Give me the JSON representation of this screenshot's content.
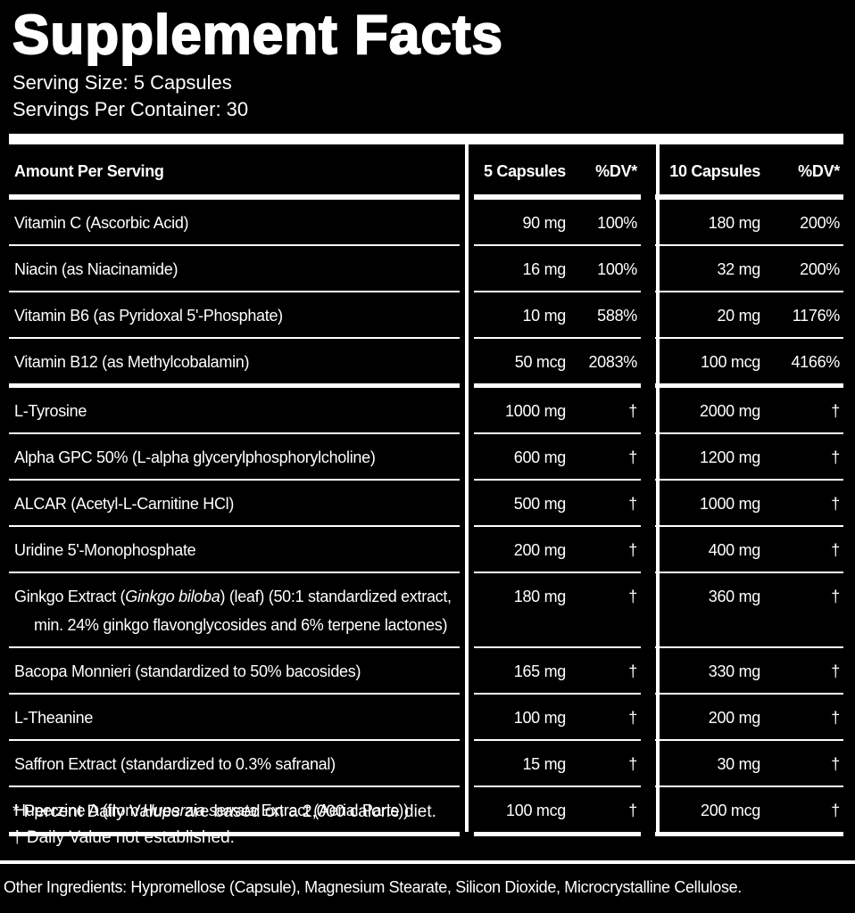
{
  "header": {
    "title": "Supplement Facts",
    "serving_size": "Serving Size: 5 Capsules",
    "servings_per_container": "Servings Per Container: 30"
  },
  "table": {
    "columns": [
      "Amount Per Serving",
      "5 Capsules",
      "%DV*",
      "10 Capsules",
      "%DV*"
    ],
    "groups": [
      [
        {
          "name": [
            "Vitamin C (Ascorbic Acid)"
          ],
          "amount_5": "90 mg",
          "dv_5": "100%",
          "amount_10": "180 mg",
          "dv_10": "200%"
        },
        {
          "name": [
            "Niacin (as Niacinamide)"
          ],
          "amount_5": "16 mg",
          "dv_5": "100%",
          "amount_10": "32 mg",
          "dv_10": "200%"
        },
        {
          "name": [
            "Vitamin B6 (as Pyridoxal 5'-Phosphate)"
          ],
          "amount_5": "10 mg",
          "dv_5": "588%",
          "amount_10": "20 mg",
          "dv_10": "1176%"
        },
        {
          "name": [
            "Vitamin B12 (as Methylcobalamin)"
          ],
          "amount_5": "50 mcg",
          "dv_5": "2083%",
          "amount_10": "100 mcg",
          "dv_10": "4166%"
        }
      ],
      [
        {
          "name": [
            "L-Tyrosine"
          ],
          "amount_5": "1000 mg",
          "dv_5": "†",
          "amount_10": "2000 mg",
          "dv_10": "†"
        },
        {
          "name": [
            "Alpha GPC 50% (L-alpha glycerylphosphorylcholine)"
          ],
          "amount_5": "600 mg",
          "dv_5": "†",
          "amount_10": "1200 mg",
          "dv_10": "†"
        },
        {
          "name": [
            "ALCAR (Acetyl-L-Carnitine HCl)"
          ],
          "amount_5": "500 mg",
          "dv_5": "†",
          "amount_10": "1000 mg",
          "dv_10": "†"
        },
        {
          "name": [
            "Uridine 5'-Monophosphate"
          ],
          "amount_5": "200 mg",
          "dv_5": "†",
          "amount_10": "400 mg",
          "dv_10": "†"
        },
        {
          "name": [
            "Ginkgo Extract (",
            {
              "text": "Ginkgo biloba",
              "italic": true
            },
            ") (leaf) (50:1 standardized extract, min. 24% ginkgo flavonglycosides and 6% terpene lactones)"
          ],
          "amount_5": "180 mg",
          "dv_5": "†",
          "amount_10": "360 mg",
          "dv_10": "†"
        },
        {
          "name": [
            "Bacopa Monnieri (standardized to 50% bacosides)"
          ],
          "amount_5": "165 mg",
          "dv_5": "†",
          "amount_10": "330 mg",
          "dv_10": "†"
        },
        {
          "name": [
            "L-Theanine"
          ],
          "amount_5": "100 mg",
          "dv_5": "†",
          "amount_10": "200 mg",
          "dv_10": "†"
        },
        {
          "name": [
            "Saffron Extract (standardized to 0.3% safranal)"
          ],
          "amount_5": "15 mg",
          "dv_5": "†",
          "amount_10": "30 mg",
          "dv_10": "†"
        },
        {
          "name": [
            "Huperzine A (from ",
            {
              "text": "Huperzia serrata",
              "italic": true
            },
            " Extract (Aerial Parts))"
          ],
          "amount_5": "100 mcg",
          "dv_5": "†",
          "amount_10": "200 mcg",
          "dv_10": "†"
        }
      ]
    ]
  },
  "footnotes": [
    "* Percent Daily Values are based on a 2,000 calorie diet.",
    "† Daily Value not established."
  ],
  "other_ingredients": "Other Ingredients: Hypromellose (Capsule), Magnesium Stearate, Silicon Dioxide, Microcrystalline Cellulose."
}
